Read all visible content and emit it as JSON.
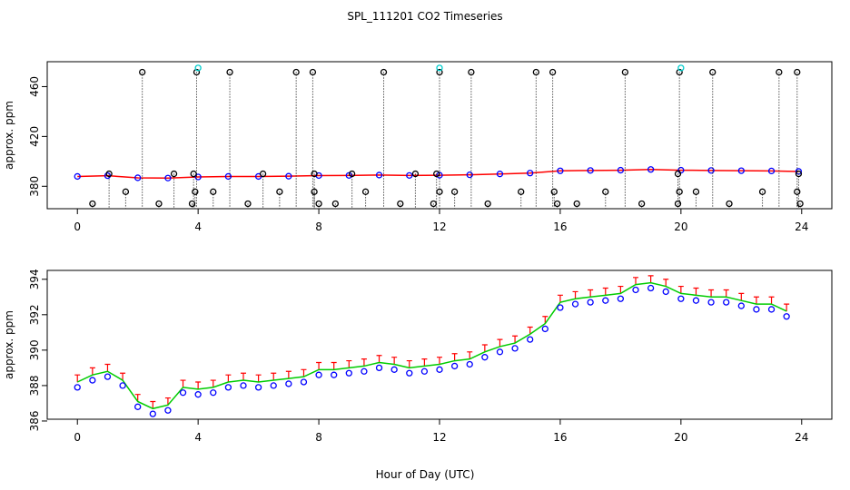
{
  "chart_data": [
    {
      "type": "scatter",
      "title": "SPL_111201  CO2 Timeseries",
      "ylabel": "approx. ppm",
      "xlim": [
        -1,
        25
      ],
      "xticks": [
        0,
        4,
        8,
        12,
        16,
        20,
        24
      ],
      "ylim": [
        362,
        480
      ],
      "yticks": [
        380,
        420,
        460
      ],
      "series": [
        {
          "color": "#0000ff",
          "marker": "circle",
          "line": "#ff0000",
          "x": [
            0,
            1,
            2,
            3,
            4,
            5,
            6,
            7,
            8,
            9,
            10,
            11,
            12,
            13,
            14,
            15,
            16,
            17,
            18,
            19,
            20,
            21,
            22,
            23,
            23.9
          ],
          "values": [
            387.9,
            388.5,
            386.8,
            386.6,
            387.5,
            387.9,
            387.9,
            388.1,
            388.6,
            388.7,
            389,
            388.7,
            388.9,
            389.2,
            389.9,
            390.6,
            392.4,
            392.7,
            392.9,
            393.5,
            392.9,
            392.7,
            392.5,
            392.3,
            391.9
          ]
        },
        {
          "color": "#000000",
          "marker": "circle",
          "drop": true,
          "x": [
            2.15,
            3.95,
            5.05,
            7.25,
            7.8,
            10.15,
            12.0,
            13.05,
            15.2,
            15.75,
            18.15,
            19.95,
            21.05,
            23.25,
            23.85,
            0.5,
            2.7,
            3.8,
            5.65,
            8.0,
            8.55,
            10.7,
            11.8,
            13.6,
            15.9,
            16.55,
            18.7,
            19.9,
            21.6,
            23.95,
            1.6,
            3.9,
            4.5,
            6.7,
            7.85,
            9.55,
            12.0,
            12.5,
            14.7,
            15.8,
            17.5,
            19.95,
            20.5,
            22.7,
            23.85,
            1.05,
            3.2,
            3.85,
            6.15,
            7.85,
            9.1,
            11.2,
            11.9,
            19.9,
            23.9
          ],
          "values": [
            471.6,
            471.6,
            471.6,
            471.6,
            471.6,
            471.6,
            471.6,
            471.6,
            471.6,
            471.6,
            471.6,
            471.6,
            471.6,
            471.6,
            471.6,
            366,
            366,
            366,
            366,
            366,
            366,
            366,
            366,
            366,
            366,
            366,
            366,
            366,
            366,
            366,
            375.6,
            375.6,
            375.6,
            375.6,
            375.6,
            375.6,
            375.6,
            375.6,
            375.6,
            375.6,
            375.6,
            375.6,
            375.6,
            375.6,
            375.6,
            390,
            390,
            390,
            390,
            390,
            390,
            390,
            390,
            390,
            390
          ]
        },
        {
          "color": "#00cccc",
          "marker": "circle",
          "x": [
            4.0,
            12.0,
            20.0
          ],
          "values": [
            475,
            475,
            475
          ]
        }
      ]
    },
    {
      "type": "line",
      "ylabel": "approx. ppm",
      "xlabel": "Hour of Day (UTC)",
      "xlim": [
        -1,
        25
      ],
      "xticks": [
        0,
        4,
        8,
        12,
        16,
        20,
        24
      ],
      "ylim": [
        386.1,
        394.5
      ],
      "yticks": [
        386,
        388,
        390,
        392,
        394
      ],
      "x": [
        0,
        0.5,
        1,
        1.5,
        2,
        2.5,
        3,
        3.5,
        4,
        4.5,
        5,
        5.5,
        6,
        6.5,
        7,
        7.5,
        8,
        8.5,
        9,
        9.5,
        10,
        10.5,
        11,
        11.5,
        12,
        12.5,
        13,
        13.5,
        14,
        14.5,
        15,
        15.5,
        16,
        16.5,
        17,
        17.5,
        18,
        18.5,
        19,
        19.5,
        20,
        20.5,
        21,
        21.5,
        22,
        22.5,
        23,
        23.5
      ],
      "series": [
        {
          "color": "#ff0000",
          "marker": "tick",
          "values": [
            388.6,
            389,
            389.2,
            388.7,
            387.5,
            387.1,
            387.3,
            388.3,
            388.2,
            388.3,
            388.6,
            388.7,
            388.6,
            388.7,
            388.8,
            388.9,
            389.3,
            389.3,
            389.4,
            389.5,
            389.7,
            389.6,
            389.4,
            389.5,
            389.6,
            389.8,
            389.9,
            390.3,
            390.6,
            390.8,
            391.3,
            391.9,
            393.1,
            393.3,
            393.4,
            393.5,
            393.6,
            394.1,
            394.2,
            394,
            393.6,
            393.5,
            393.4,
            393.4,
            393.2,
            393,
            393,
            392.6
          ]
        },
        {
          "color": "#00cc00",
          "marker": "line",
          "values": [
            388.2,
            388.6,
            388.8,
            388.3,
            387.1,
            386.7,
            386.9,
            387.9,
            387.8,
            387.9,
            388.2,
            388.3,
            388.2,
            388.3,
            388.4,
            388.5,
            388.9,
            388.9,
            389,
            389.1,
            389.3,
            389.2,
            389,
            389.1,
            389.2,
            389.4,
            389.5,
            389.9,
            390.2,
            390.4,
            390.9,
            391.5,
            392.7,
            392.9,
            393,
            393.1,
            393.2,
            393.7,
            393.8,
            393.6,
            393.2,
            393.1,
            393,
            393,
            392.8,
            392.6,
            392.6,
            392.2
          ]
        },
        {
          "color": "#0000ff",
          "marker": "circle",
          "values": [
            387.9,
            388.3,
            388.5,
            388,
            386.8,
            386.4,
            386.6,
            387.6,
            387.5,
            387.6,
            387.9,
            388,
            387.9,
            388,
            388.1,
            388.2,
            388.6,
            388.6,
            388.7,
            388.8,
            389,
            388.9,
            388.7,
            388.8,
            388.9,
            389.1,
            389.2,
            389.6,
            389.9,
            390.1,
            390.6,
            391.2,
            392.4,
            392.6,
            392.7,
            392.8,
            392.9,
            393.4,
            393.5,
            393.3,
            392.9,
            392.8,
            392.7,
            392.7,
            392.5,
            392.3,
            392.3,
            391.9
          ]
        }
      ]
    }
  ]
}
